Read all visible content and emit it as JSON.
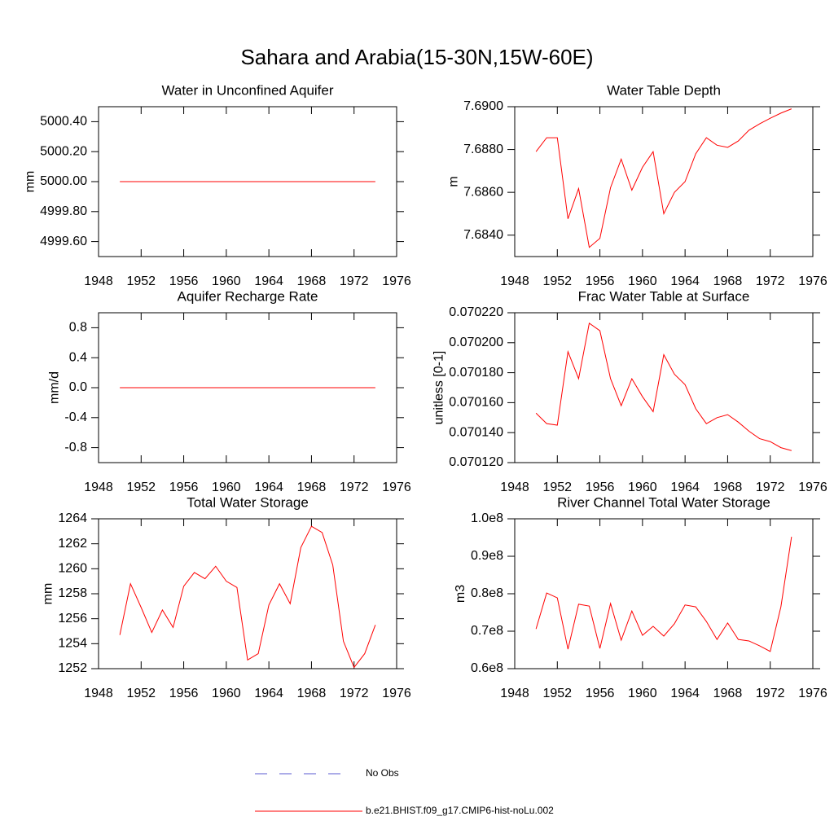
{
  "title": "Sahara and Arabia(15-30N,15W-60E)",
  "chart_data": [
    {
      "type": "line",
      "title": "Water in Unconfined Aquifer",
      "ylabel": "mm",
      "x": [
        1950,
        1951,
        1952,
        1953,
        1954,
        1955,
        1956,
        1957,
        1958,
        1959,
        1960,
        1961,
        1962,
        1963,
        1964,
        1965,
        1966,
        1967,
        1968,
        1969,
        1970,
        1971,
        1972,
        1973,
        1974
      ],
      "series": [
        {
          "color": "#ff0000",
          "values": [
            5000,
            5000,
            5000,
            5000,
            5000,
            5000,
            5000,
            5000,
            5000,
            5000,
            5000,
            5000,
            5000,
            5000,
            5000,
            5000,
            5000,
            5000,
            5000,
            5000,
            5000,
            5000,
            5000,
            5000,
            5000
          ]
        }
      ],
      "xlim": [
        1948,
        1976
      ],
      "xticks": [
        1948,
        1952,
        1956,
        1960,
        1964,
        1968,
        1972,
        1976
      ],
      "ylim": [
        4999.5,
        5000.5
      ],
      "yticks": [
        {
          "value": 4999.6,
          "label": "4999.60"
        },
        {
          "value": 4999.8,
          "label": "4999.80"
        },
        {
          "value": 5000,
          "label": "5000.00"
        },
        {
          "value": 5000.2,
          "label": "5000.20"
        },
        {
          "value": 5000.4,
          "label": "5000.40"
        }
      ]
    },
    {
      "type": "line",
      "title": "Water Table Depth",
      "ylabel": "m",
      "x": [
        1950,
        1951,
        1952,
        1953,
        1954,
        1955,
        1956,
        1957,
        1958,
        1959,
        1960,
        1961,
        1962,
        1963,
        1964,
        1965,
        1966,
        1967,
        1968,
        1969,
        1970,
        1971,
        1972,
        1973,
        1974
      ],
      "series": [
        {
          "color": "#ff0000",
          "values": [
            7.6879,
            7.68855,
            7.68855,
            7.68476,
            7.68618,
            7.68343,
            7.68385,
            7.68622,
            7.68755,
            7.6861,
            7.68717,
            7.6879,
            7.685,
            7.686,
            7.6865,
            7.6878,
            7.68855,
            7.6882,
            7.6881,
            7.6884,
            7.6889,
            7.6892,
            7.68946,
            7.6897,
            7.6899
          ]
        }
      ],
      "xlim": [
        1948,
        1976
      ],
      "xticks": [
        1948,
        1952,
        1956,
        1960,
        1964,
        1968,
        1972,
        1976
      ],
      "ylim": [
        7.683,
        7.69
      ],
      "yticks": [
        {
          "value": 7.684,
          "label": "7.6840"
        },
        {
          "value": 7.686,
          "label": "7.6860"
        },
        {
          "value": 7.688,
          "label": "7.6880"
        },
        {
          "value": 7.69,
          "label": "7.6900"
        }
      ]
    },
    {
      "type": "line",
      "title": "Aquifer Recharge Rate",
      "ylabel": "mm/d",
      "x": [
        1950,
        1951,
        1952,
        1953,
        1954,
        1955,
        1956,
        1957,
        1958,
        1959,
        1960,
        1961,
        1962,
        1963,
        1964,
        1965,
        1966,
        1967,
        1968,
        1969,
        1970,
        1971,
        1972,
        1973,
        1974
      ],
      "series": [
        {
          "color": "#ff0000",
          "values": [
            0,
            0,
            0,
            0,
            0,
            0,
            0,
            0,
            0,
            0,
            0,
            0,
            0,
            0,
            0,
            0,
            0,
            0,
            0,
            0,
            0,
            0,
            0,
            0,
            0
          ]
        }
      ],
      "xlim": [
        1948,
        1976
      ],
      "xticks": [
        1948,
        1952,
        1956,
        1960,
        1964,
        1968,
        1972,
        1976
      ],
      "ylim": [
        -1.0,
        1.0
      ],
      "yticks": [
        -0.8,
        -0.4,
        {
          "value": 0,
          "label": "0.0"
        },
        0.4,
        0.8
      ]
    },
    {
      "type": "line",
      "title": "Frac Water Table at Surface",
      "ylabel": "unitless [0-1]",
      "x": [
        1950,
        1951,
        1952,
        1953,
        1954,
        1955,
        1956,
        1957,
        1958,
        1959,
        1960,
        1961,
        1962,
        1963,
        1964,
        1965,
        1966,
        1967,
        1968,
        1969,
        1970,
        1971,
        1972,
        1973,
        1974
      ],
      "series": [
        {
          "color": "#ff0000",
          "values": [
            0.070153,
            0.070146,
            0.070145,
            0.070194,
            0.070176,
            0.070213,
            0.070208,
            0.070176,
            0.070158,
            0.070176,
            0.070164,
            0.070154,
            0.070192,
            0.070179,
            0.070172,
            0.070156,
            0.070146,
            0.07015,
            0.070152,
            0.070147,
            0.070141,
            0.070136,
            0.070134,
            0.07013,
            0.070128
          ]
        }
      ],
      "xlim": [
        1948,
        1976
      ],
      "xticks": [
        1948,
        1952,
        1956,
        1960,
        1964,
        1968,
        1972,
        1976
      ],
      "ylim": [
        0.07012,
        0.07022
      ],
      "yticks": [
        {
          "value": 0.07012,
          "label": "0.070120"
        },
        {
          "value": 0.07014,
          "label": "0.070140"
        },
        {
          "value": 0.07016,
          "label": "0.070160"
        },
        {
          "value": 0.07018,
          "label": "0.070180"
        },
        {
          "value": 0.0702,
          "label": "0.070200"
        },
        {
          "value": 0.07022,
          "label": "0.070220"
        }
      ]
    },
    {
      "type": "line",
      "title": "Total Water Storage",
      "ylabel": "mm",
      "x": [
        1950,
        1951,
        1952,
        1953,
        1954,
        1955,
        1956,
        1957,
        1958,
        1959,
        1960,
        1961,
        1962,
        1963,
        1964,
        1965,
        1966,
        1967,
        1968,
        1969,
        1970,
        1971,
        1972,
        1973,
        1974
      ],
      "series": [
        {
          "color": "#ff0000",
          "values": [
            1254.7,
            1258.8,
            1256.9,
            1254.9,
            1256.7,
            1255.3,
            1258.6,
            1259.7,
            1259.2,
            1260.2,
            1259.0,
            1258.5,
            1252.7,
            1253.2,
            1257.1,
            1258.8,
            1257.2,
            1261.7,
            1263.4,
            1262.9,
            1260.3,
            1254.2,
            1252.1,
            1253.2,
            1255.5
          ]
        }
      ],
      "xlim": [
        1948,
        1976
      ],
      "xticks": [
        1948,
        1952,
        1956,
        1960,
        1964,
        1968,
        1972,
        1976
      ],
      "ylim": [
        1252,
        1264
      ],
      "yticks": [
        1252,
        1254,
        1256,
        1258,
        1260,
        1262,
        1264
      ]
    },
    {
      "type": "line",
      "title": "River Channel Total Water Storage",
      "ylabel": "m3",
      "x": [
        1950,
        1951,
        1952,
        1953,
        1954,
        1955,
        1956,
        1957,
        1958,
        1959,
        1960,
        1961,
        1962,
        1963,
        1964,
        1965,
        1966,
        1967,
        1968,
        1969,
        1970,
        1971,
        1972,
        1973,
        1974
      ],
      "series": [
        {
          "color": "#ff0000",
          "values": [
            70600000,
            80200000,
            78900000,
            65200000,
            77200000,
            76700000,
            65400000,
            77400000,
            67600000,
            75400000,
            68900000,
            71300000,
            68700000,
            72000000,
            77000000,
            76500000,
            72600000,
            67800000,
            72200000,
            67800000,
            67400000,
            66100000,
            64600000,
            76500000,
            95200000
          ]
        }
      ],
      "xlim": [
        1948,
        1976
      ],
      "xticks": [
        1948,
        1952,
        1956,
        1960,
        1964,
        1968,
        1972,
        1976
      ],
      "ylim": [
        60000000,
        100000000
      ],
      "yticks": [
        {
          "value": 60000000,
          "label": "0.6e8"
        },
        {
          "value": 70000000,
          "label": "0.7e8"
        },
        {
          "value": 80000000,
          "label": "0.8e8"
        },
        {
          "value": 90000000,
          "label": "0.9e8"
        },
        {
          "value": 100000000,
          "label": "1.0e8"
        }
      ]
    }
  ],
  "legend": [
    {
      "name": "No Obs",
      "color": "#5a5ad0",
      "dash": true
    },
    {
      "name": "b.e21.BHIST.f09_g17.CMIP6-hist-noLu.002",
      "color": "#ff0000",
      "dash": false
    }
  ]
}
